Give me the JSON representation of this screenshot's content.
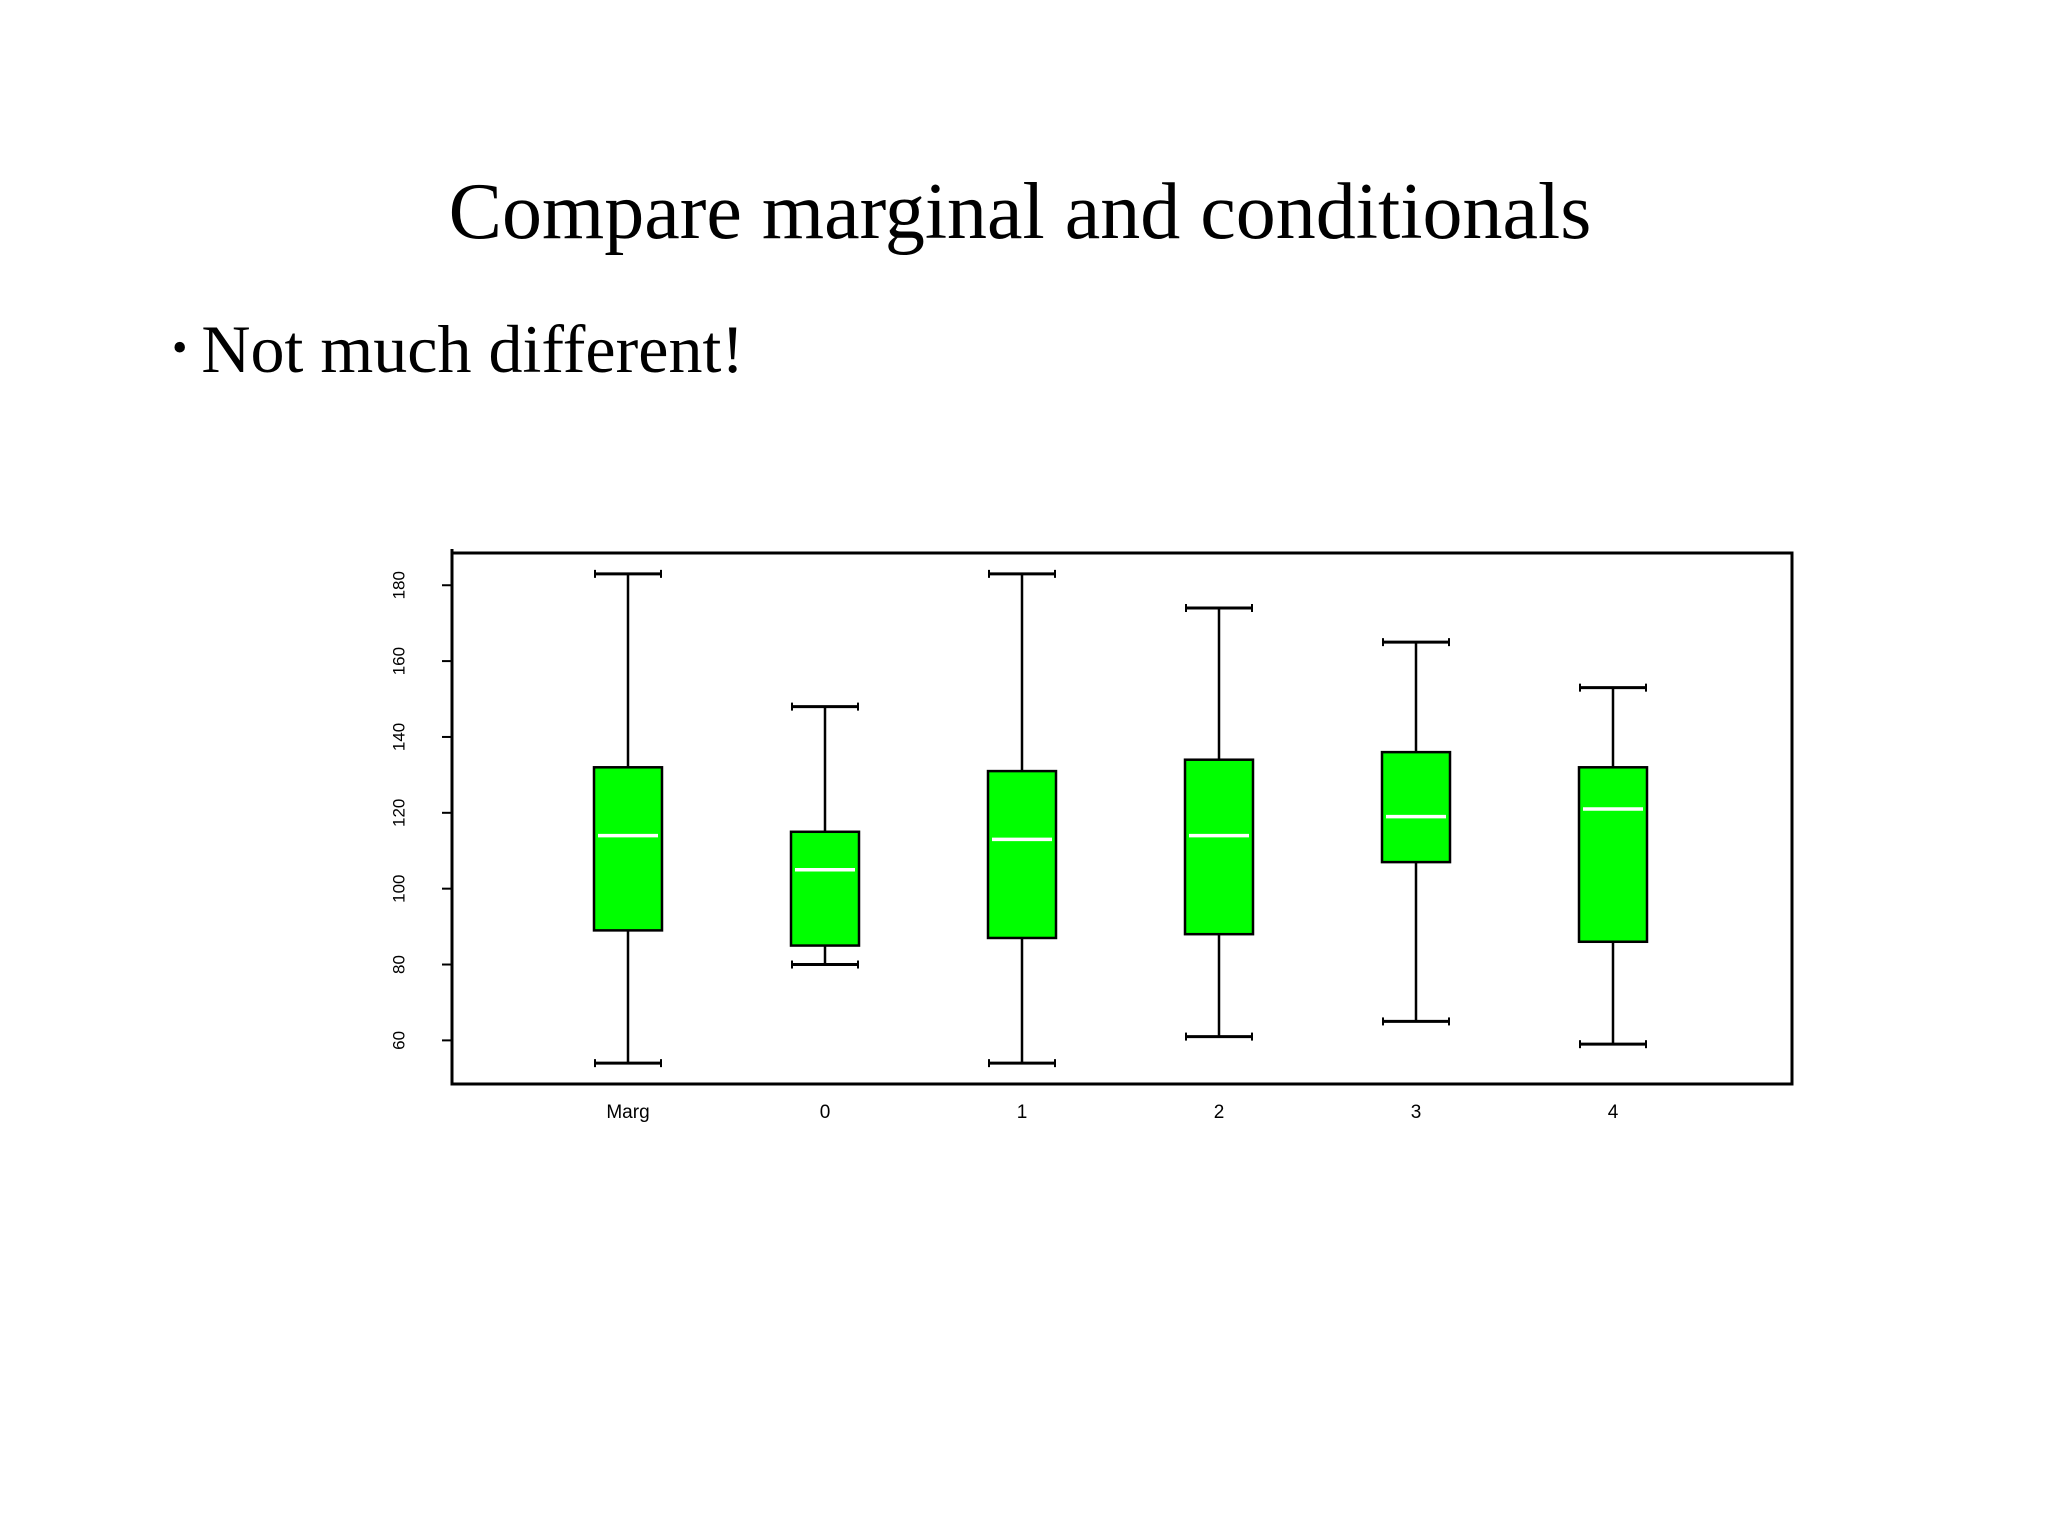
{
  "slide": {
    "title": "Compare marginal and conditionals",
    "bullet_symbol": "•",
    "bullet_text": "Not much different!"
  },
  "colors": {
    "box_fill": "#00ff00",
    "median_line": "#ffffff",
    "stroke": "#000000"
  },
  "chart_data": {
    "type": "boxplot",
    "categories": [
      "Marg",
      "0",
      "1",
      "2",
      "3",
      "4"
    ],
    "boxes": [
      {
        "category": "Marg",
        "whisker_low": 54,
        "q1": 89,
        "median": 114,
        "q3": 132,
        "whisker_high": 183
      },
      {
        "category": "0",
        "whisker_low": 80,
        "q1": 85,
        "median": 105,
        "q3": 115,
        "whisker_high": 148
      },
      {
        "category": "1",
        "whisker_low": 54,
        "q1": 87,
        "median": 113,
        "q3": 131,
        "whisker_high": 183
      },
      {
        "category": "2",
        "whisker_low": 61,
        "q1": 88,
        "median": 114,
        "q3": 134,
        "whisker_high": 174
      },
      {
        "category": "3",
        "whisker_low": 65,
        "q1": 107,
        "median": 119,
        "q3": 136,
        "whisker_high": 165
      },
      {
        "category": "4",
        "whisker_low": 59,
        "q1": 86,
        "median": 121,
        "q3": 132,
        "whisker_high": 153
      }
    ],
    "y_ticks": [
      60,
      80,
      100,
      120,
      140,
      160,
      180
    ],
    "ylim": [
      48.5,
      188.5
    ],
    "title": "",
    "xlabel": "",
    "ylabel": "",
    "grid": false
  }
}
